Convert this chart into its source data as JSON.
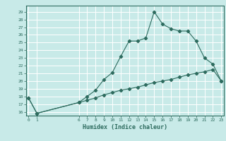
{
  "title": "",
  "xlabel": "Humidex (Indice chaleur)",
  "background_color": "#c8eae8",
  "grid_color": "#ffffff",
  "line_color": "#2d6b5e",
  "x_ticks": [
    0,
    1,
    6,
    7,
    8,
    9,
    10,
    11,
    12,
    13,
    14,
    15,
    16,
    17,
    18,
    19,
    20,
    21,
    22,
    23
  ],
  "ylim": [
    15.5,
    29.8
  ],
  "xlim": [
    -0.3,
    23.3
  ],
  "yticks": [
    16,
    17,
    18,
    19,
    20,
    21,
    22,
    23,
    24,
    25,
    26,
    27,
    28,
    29
  ],
  "line1_x": [
    0,
    1,
    6,
    7,
    8,
    9,
    10,
    11,
    12,
    13,
    14,
    15,
    16,
    17,
    18,
    19,
    20,
    21,
    22,
    23
  ],
  "line1_y": [
    17.8,
    15.8,
    17.2,
    18.0,
    18.8,
    20.2,
    21.1,
    23.2,
    25.2,
    25.2,
    25.6,
    29.0,
    27.4,
    26.8,
    26.5,
    26.5,
    25.2,
    23.0,
    22.2,
    20.0
  ],
  "line2_x": [
    0,
    1,
    6,
    7,
    8,
    9,
    10,
    11,
    12,
    13,
    14,
    15,
    16,
    17,
    18,
    19,
    20,
    21,
    22,
    23
  ],
  "line2_y": [
    17.8,
    15.8,
    17.2,
    17.5,
    17.8,
    18.2,
    18.5,
    18.8,
    19.0,
    19.2,
    19.5,
    19.8,
    20.0,
    20.2,
    20.5,
    20.8,
    21.0,
    21.2,
    21.5,
    20.0
  ]
}
